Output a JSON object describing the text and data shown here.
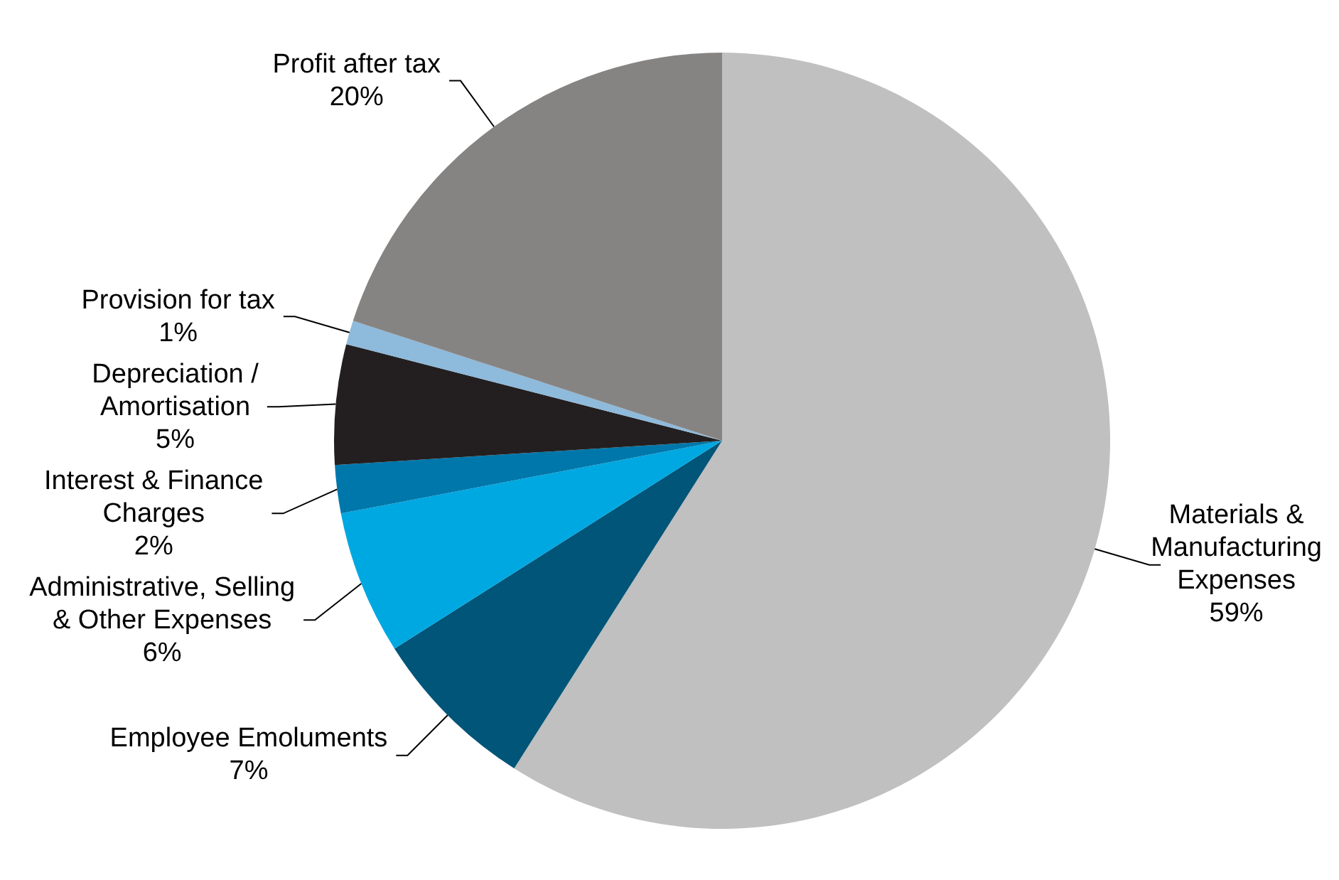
{
  "chart_data": {
    "type": "pie",
    "categories": [
      "Materials & Manufacturing Expenses",
      "Employee Emoluments",
      "Administrative, Selling & Other Expenses",
      "Interest & Finance Charges",
      "Depreciation / Amortisation",
      "Provision for tax",
      "Profit after tax"
    ],
    "values": [
      59,
      7,
      6,
      2,
      5,
      1,
      20
    ],
    "value_labels": [
      "59%",
      "7%",
      "6%",
      "2%",
      "5%",
      "1%",
      "20%"
    ],
    "colors": [
      "#c0c0c0",
      "#005578",
      "#00a8e1",
      "#0077aa",
      "#231f20",
      "#8ebadb",
      "#868482"
    ],
    "legend": false
  }
}
